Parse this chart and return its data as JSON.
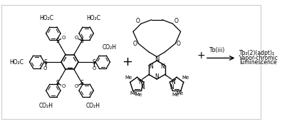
{
  "bg": "#ffffff",
  "border_color": "#cccccc",
  "fig_w": 3.96,
  "fig_h": 1.74,
  "dpi": 100,
  "arrow_label_top": "Tb(iii)",
  "arrow_label_r1": "Tb₂(2)(adpt)₂",
  "arrow_label_r2": "Vapor-chromic",
  "arrow_label_r3": "luminescence",
  "plus": "+"
}
